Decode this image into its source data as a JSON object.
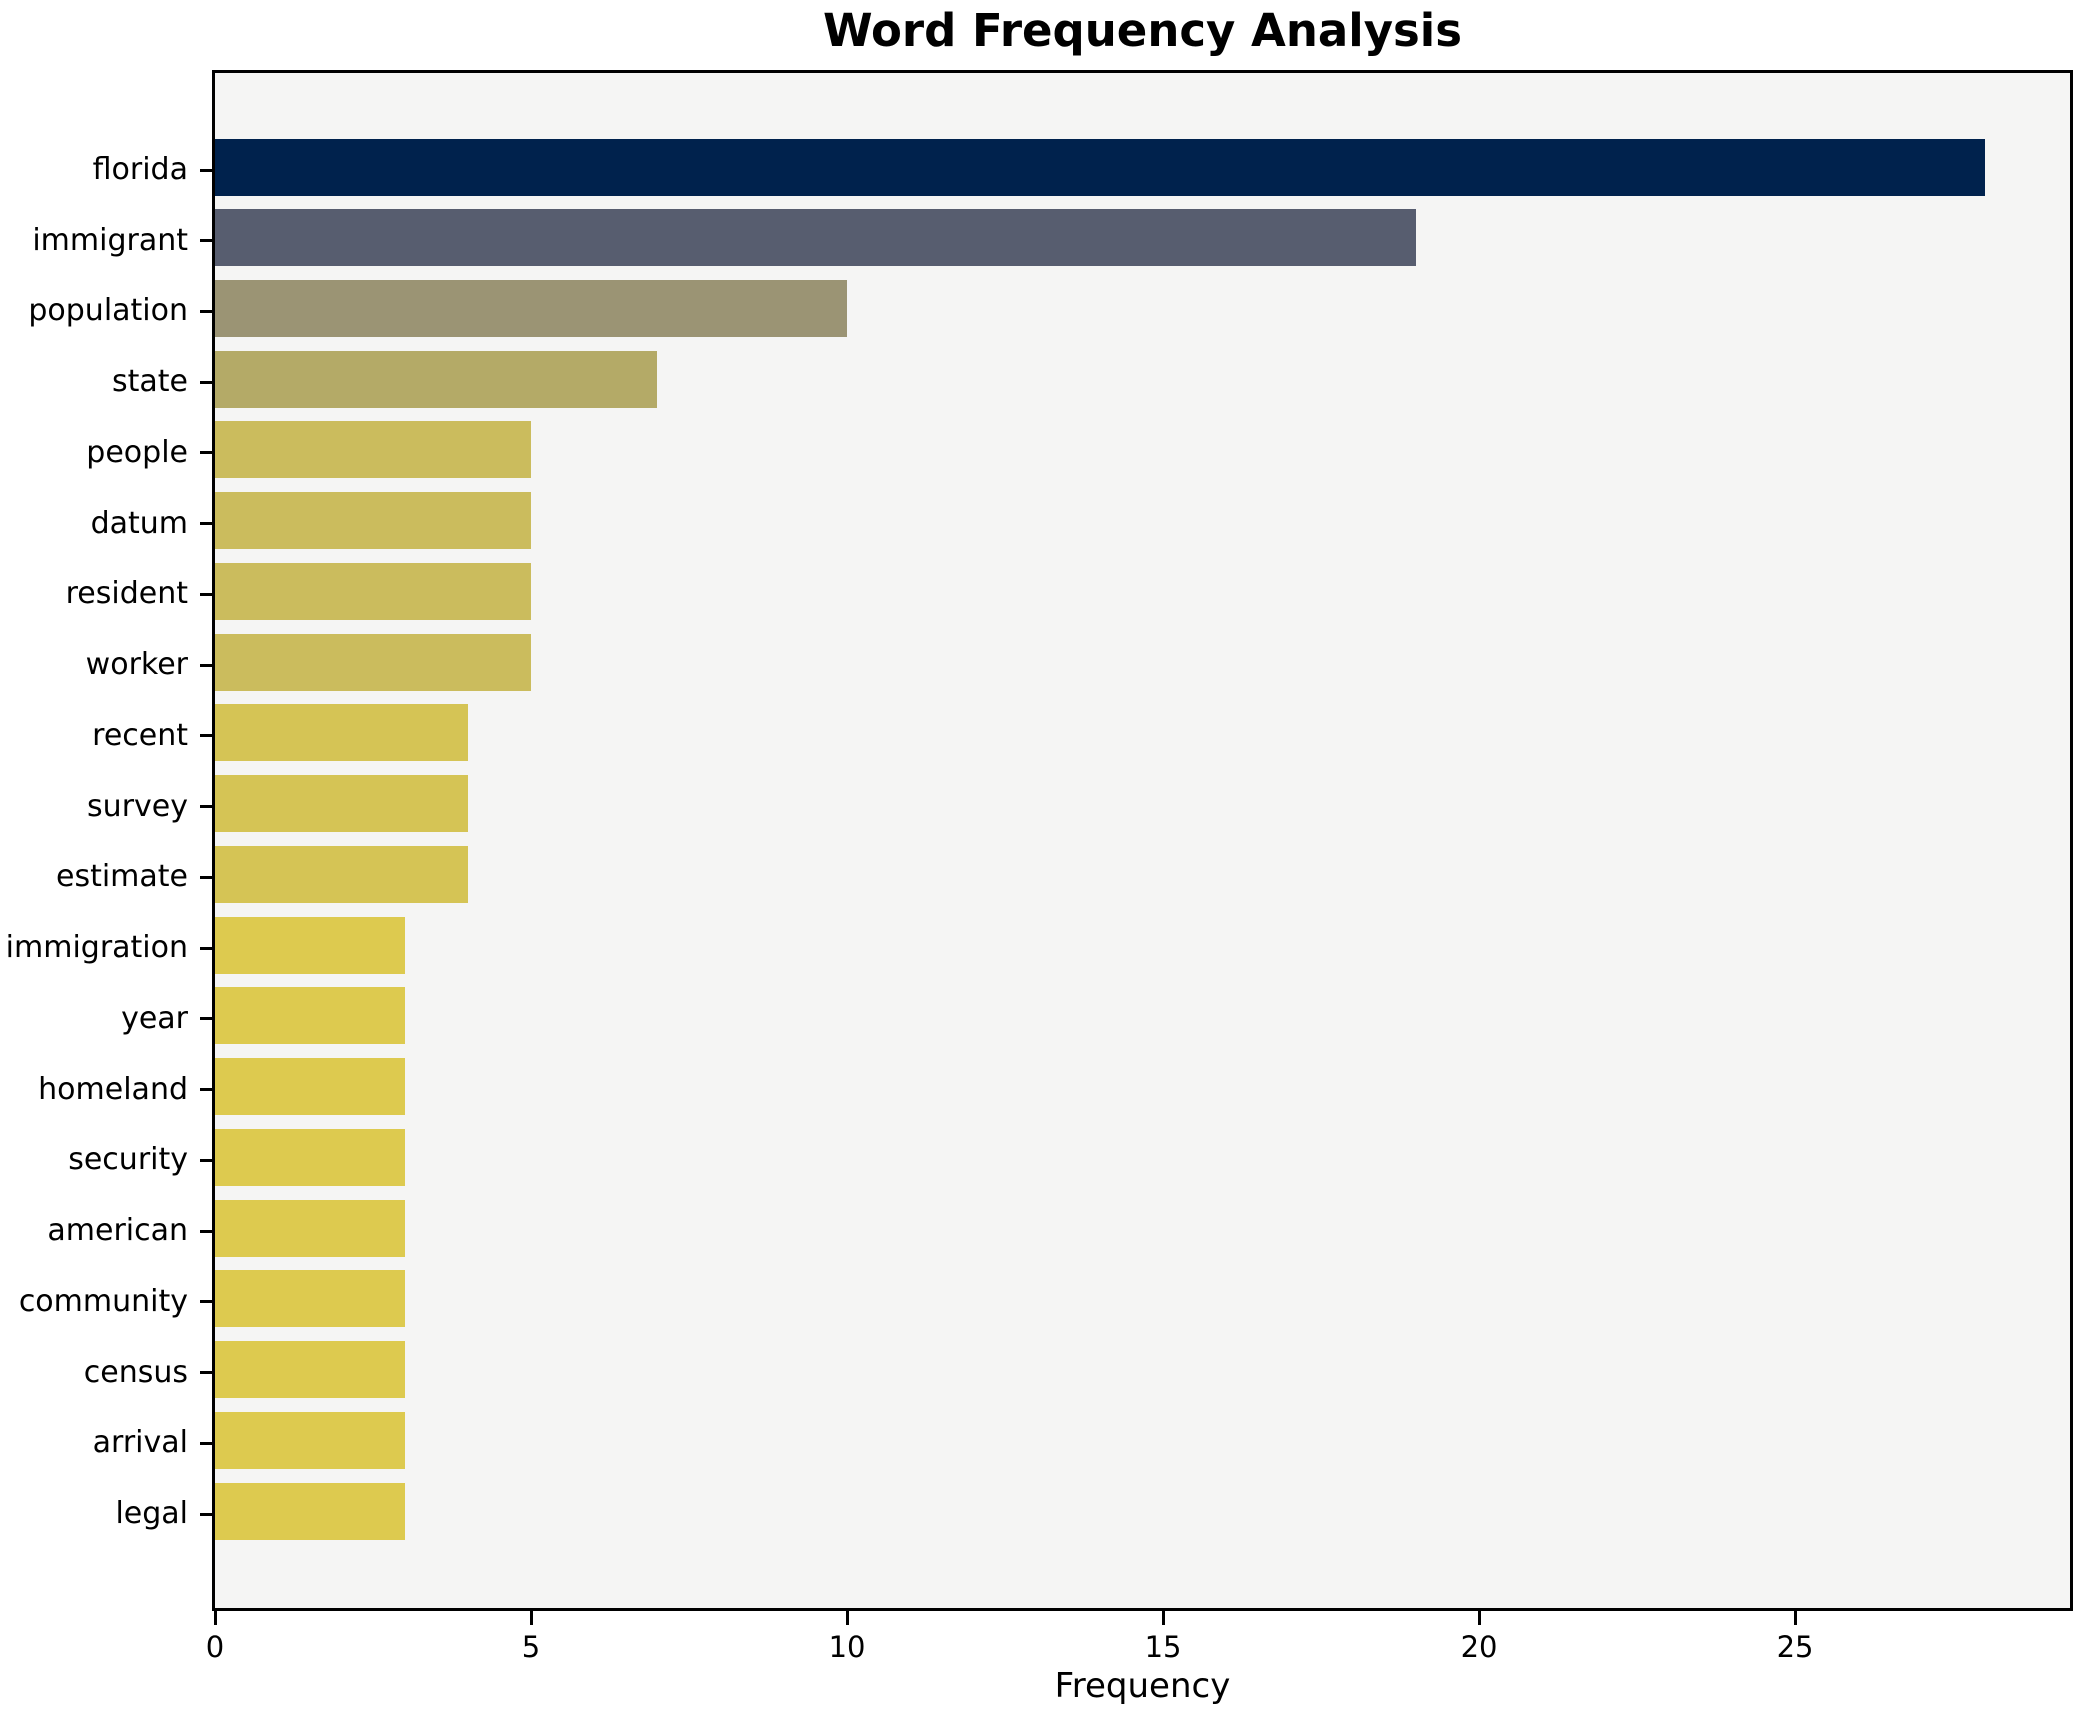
{
  "chart_data": {
    "type": "bar",
    "orientation": "horizontal",
    "title": "Word Frequency Analysis",
    "xlabel": "Frequency",
    "ylabel": "",
    "categories": [
      "florida",
      "immigrant",
      "population",
      "state",
      "people",
      "datum",
      "resident",
      "worker",
      "recent",
      "survey",
      "estimate",
      "immigration",
      "year",
      "homeland",
      "security",
      "american",
      "community",
      "census",
      "arrival",
      "legal"
    ],
    "values": [
      28,
      19,
      10,
      7,
      5,
      5,
      5,
      5,
      4,
      4,
      4,
      3,
      3,
      3,
      3,
      3,
      3,
      3,
      3,
      3
    ],
    "bar_colors": [
      "#00224d",
      "#575d6f",
      "#9b9474",
      "#b4aa67",
      "#cbbc5d",
      "#cbbc5d",
      "#cbbc5d",
      "#cbbc5d",
      "#d5c455",
      "#d5c455",
      "#d5c455",
      "#ddca4f",
      "#ddca4f",
      "#ddca4f",
      "#ddca4f",
      "#ddca4f",
      "#ddca4f",
      "#ddca4f",
      "#ddca4f",
      "#ddca4f"
    ],
    "xlim": [
      0,
      29.35
    ],
    "xticks": [
      0,
      5,
      10,
      15,
      20,
      25
    ],
    "grid": false,
    "legend_position": "none",
    "plot_background": "#f5f5f4",
    "figure_background": "#ffffff",
    "spine_color": "#000000",
    "text_color": "#000000"
  }
}
